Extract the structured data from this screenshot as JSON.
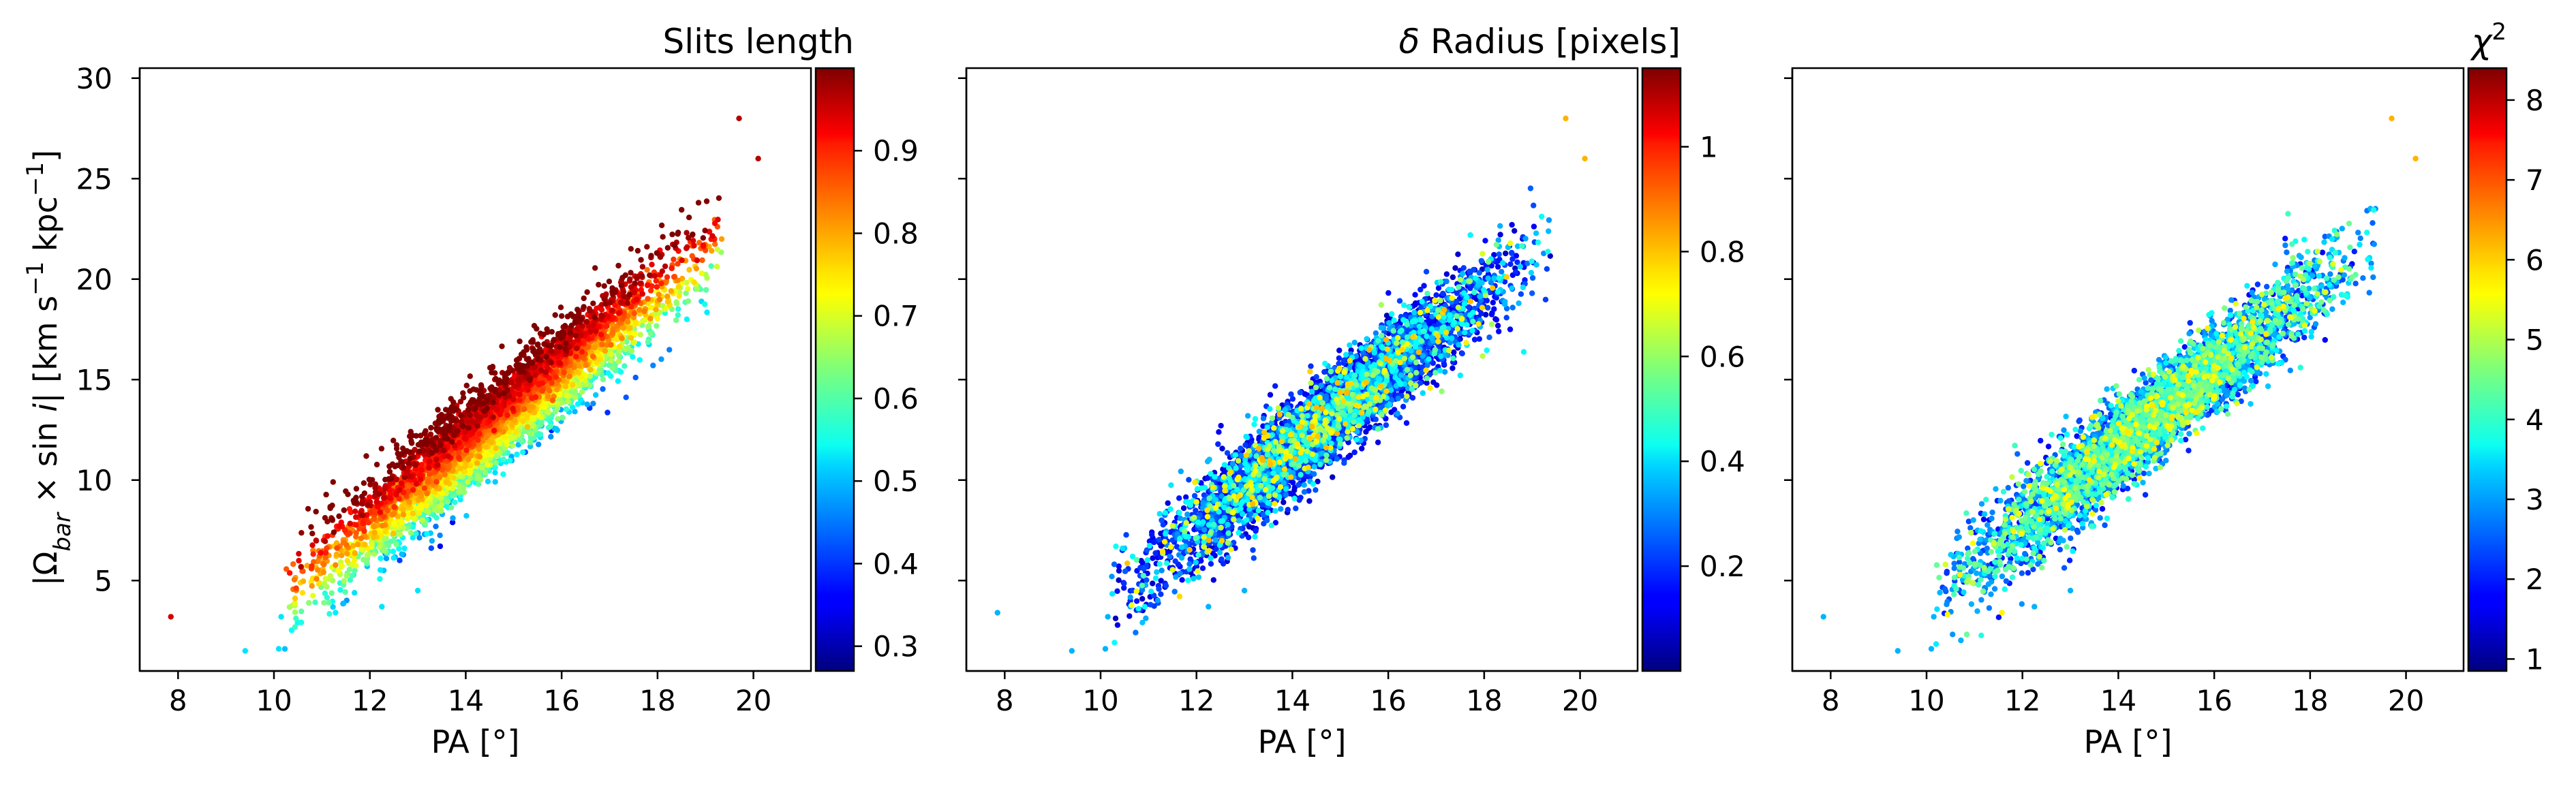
{
  "figure": {
    "ylabel_shared": "|Ω_bar × sin i|   [km s⁻¹ kpc⁻¹]",
    "ylabel_parts": [
      "|Ω",
      "bar",
      " × sin ",
      "i",
      "|   [km s",
      "−1",
      " kpc",
      "−1",
      "]"
    ]
  },
  "chart_data": [
    {
      "type": "scatter",
      "xlabel": "PA [°]",
      "ylabel": "|Ω_bar × sin i|   [km s⁻¹ kpc⁻¹]",
      "xlim": [
        7.2,
        21.2
      ],
      "ylim": [
        0.5,
        30.5
      ],
      "xticks": [
        8,
        10,
        12,
        14,
        16,
        18,
        20
      ],
      "yticks": [
        5,
        10,
        15,
        20,
        25,
        30
      ],
      "color_mode": "correlated",
      "colorbar": {
        "title": "Slits length",
        "title_parts": [
          "Slits length"
        ],
        "colormap": "jet",
        "range": [
          0.27,
          1.0
        ],
        "ticks": [
          0.3,
          0.4,
          0.5,
          0.6,
          0.7,
          0.8,
          0.9
        ]
      },
      "points": {
        "count": 5200,
        "trend": {
          "slope": 1.93,
          "intercept": -15.4
        },
        "x_center": 14.7,
        "x_spread": 1.75,
        "x_range": [
          10.2,
          19.4
        ],
        "residual_spread": 1.3,
        "outliers": [
          [
            7.85,
            3.2
          ],
          [
            9.4,
            1.5
          ],
          [
            10.1,
            1.6
          ],
          [
            10.15,
            3.2
          ],
          [
            12.25,
            3.7
          ],
          [
            13.0,
            4.5
          ],
          [
            19.7,
            28.0
          ],
          [
            20.1,
            26.0
          ]
        ]
      }
    },
    {
      "type": "scatter",
      "xlabel": "PA [°]",
      "xlim": [
        7.2,
        21.2
      ],
      "ylim": [
        0.5,
        30.5
      ],
      "xticks": [
        8,
        10,
        12,
        14,
        16,
        18,
        20
      ],
      "yticks": [
        5,
        10,
        15,
        20,
        25,
        30
      ],
      "color_mode": "mostly-low",
      "colorbar": {
        "title": "δ Radius [pixels]",
        "title_parts": [
          "δ",
          " Radius [pixels]"
        ],
        "colormap": "jet",
        "range": [
          0.0,
          1.15
        ],
        "ticks": [
          0.2,
          0.4,
          0.6,
          0.8,
          1.0
        ]
      },
      "points": {
        "count": 5200,
        "trend": {
          "slope": 1.93,
          "intercept": -15.4
        },
        "x_center": 14.7,
        "x_spread": 1.75,
        "x_range": [
          10.2,
          19.4
        ],
        "residual_spread": 1.3,
        "outliers": [
          [
            7.85,
            3.4
          ],
          [
            9.4,
            1.5
          ],
          [
            10.1,
            1.6
          ],
          [
            10.15,
            3.2
          ],
          [
            12.25,
            3.7
          ],
          [
            13.0,
            4.5
          ],
          [
            19.7,
            28.0
          ],
          [
            20.1,
            26.0
          ]
        ]
      }
    },
    {
      "type": "scatter",
      "xlabel": "PA [°]",
      "xlim": [
        7.2,
        21.2
      ],
      "ylim": [
        0.5,
        30.5
      ],
      "xticks": [
        8,
        10,
        12,
        14,
        16,
        18,
        20
      ],
      "yticks": [
        5,
        10,
        15,
        20,
        25,
        30
      ],
      "color_mode": "mid-low",
      "colorbar": {
        "title": "χ²",
        "title_parts": [
          "χ",
          "2"
        ],
        "colormap": "jet",
        "range": [
          0.85,
          8.4
        ],
        "ticks": [
          1,
          2,
          3,
          4,
          5,
          6,
          7,
          8
        ]
      },
      "points": {
        "count": 5200,
        "trend": {
          "slope": 1.93,
          "intercept": -15.4
        },
        "x_center": 14.7,
        "x_spread": 1.75,
        "x_range": [
          10.2,
          19.4
        ],
        "residual_spread": 1.3,
        "outliers": [
          [
            7.85,
            3.2
          ],
          [
            9.4,
            1.5
          ],
          [
            10.1,
            1.6
          ],
          [
            10.15,
            3.2
          ],
          [
            12.25,
            3.7
          ],
          [
            13.0,
            4.5
          ],
          [
            19.7,
            28.0
          ],
          [
            20.2,
            26.0
          ]
        ]
      }
    }
  ]
}
